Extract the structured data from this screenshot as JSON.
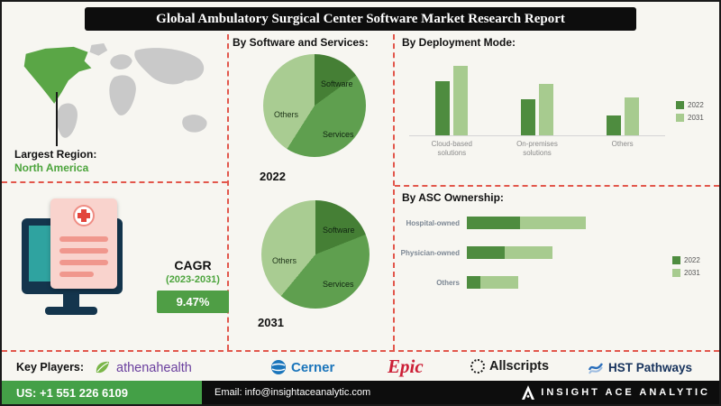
{
  "title": "Global Ambulatory Surgical Center Software Market Research Report",
  "region": {
    "label": "Largest Region:",
    "value": "North America"
  },
  "cagr": {
    "label": "CAGR",
    "period": "(2023-2031)",
    "value": "9.47%"
  },
  "colors": {
    "green_dark": "#457f35",
    "green_mid": "#5f9f4f",
    "green_light": "#a9cc92",
    "accent_green": "#4ca43c",
    "dashed_red": "#e2574c"
  },
  "chart_data": [
    {
      "type": "pie",
      "title": "By Software and Services:",
      "year": "2022",
      "slices": [
        {
          "label": "Software",
          "value": 15,
          "color": "#457f35"
        },
        {
          "label": "Services",
          "value": 44,
          "color": "#5f9f4f"
        },
        {
          "label": "Others",
          "value": 41,
          "color": "#a9cc92"
        }
      ]
    },
    {
      "type": "pie",
      "year": "2031",
      "slices": [
        {
          "label": "Software",
          "value": 19,
          "color": "#457f35"
        },
        {
          "label": "Services",
          "value": 42,
          "color": "#5f9f4f"
        },
        {
          "label": "Others",
          "value": 39,
          "color": "#a9cc92"
        }
      ]
    },
    {
      "type": "bar",
      "title": "By Deployment Mode:",
      "categories": [
        "Cloud-based solutions",
        "On-premises solutions",
        "Others"
      ],
      "series": [
        {
          "name": "2022",
          "color": "#4e8c3f",
          "values": [
            55,
            36,
            20
          ]
        },
        {
          "name": "2031",
          "color": "#a7cb8f",
          "values": [
            70,
            52,
            38
          ]
        }
      ],
      "legend_position": "right"
    },
    {
      "type": "hbar-stacked",
      "title": "By ASC Ownership:",
      "categories": [
        "Hospital-owned",
        "Physician-owned",
        "Others"
      ],
      "series": [
        {
          "name": "2022",
          "color": "#4e8c3f",
          "values": [
            42,
            30,
            11
          ]
        },
        {
          "name": "2031",
          "color": "#a7cb8f",
          "values": [
            52,
            38,
            30
          ]
        }
      ],
      "legend_position": "right"
    }
  ],
  "key_players": {
    "label": "Key Players:",
    "players": [
      "athenahealth",
      "Cerner",
      "Epic",
      "Allscripts",
      "HST Pathways"
    ]
  },
  "footer": {
    "phone": "US: +1 551 226 6109",
    "email": "Email: info@insightaceanalytic.com",
    "brand": "INSIGHT ACE ANALYTIC"
  }
}
